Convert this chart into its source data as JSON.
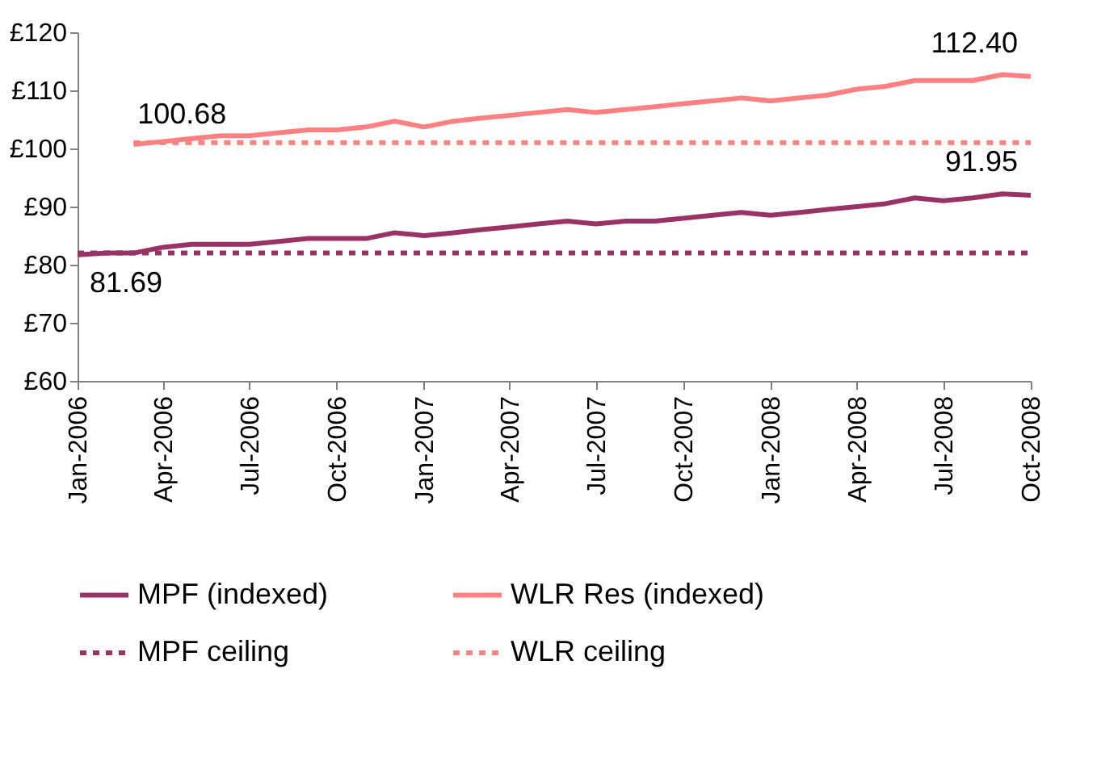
{
  "chart_data": {
    "type": "line",
    "x": [
      "2006-01",
      "2006-02",
      "2006-03",
      "2006-04",
      "2006-05",
      "2006-06",
      "2006-07",
      "2006-08",
      "2006-09",
      "2006-10",
      "2006-11",
      "2006-12",
      "2007-01",
      "2007-02",
      "2007-03",
      "2007-04",
      "2007-05",
      "2007-06",
      "2007-07",
      "2007-08",
      "2007-09",
      "2007-10",
      "2007-11",
      "2007-12",
      "2008-01",
      "2008-02",
      "2008-03",
      "2008-04",
      "2008-05",
      "2008-06",
      "2008-07",
      "2008-08",
      "2008-09",
      "2008-10"
    ],
    "series": [
      {
        "name": "MPF (indexed)",
        "color": "#993366",
        "line_style": "solid",
        "values": [
          81.69,
          82,
          82,
          83,
          83.5,
          83.5,
          83.5,
          84,
          84.5,
          84.5,
          84.5,
          85.5,
          85,
          85.5,
          86,
          86.5,
          87,
          87.5,
          87,
          87.5,
          87.5,
          88,
          88.5,
          89,
          88.5,
          89,
          89.5,
          90,
          90.5,
          91.5,
          91,
          91.5,
          92.2,
          91.95
        ]
      },
      {
        "name": "WLR Res (indexed)",
        "color": "#ff8080",
        "line_style": "solid",
        "x": [
          "2006-03",
          "2006-04",
          "2006-05",
          "2006-06",
          "2006-07",
          "2006-08",
          "2006-09",
          "2006-10",
          "2006-11",
          "2006-12",
          "2007-01",
          "2007-02",
          "2007-03",
          "2007-04",
          "2007-05",
          "2007-06",
          "2007-07",
          "2007-08",
          "2007-09",
          "2007-10",
          "2007-11",
          "2007-12",
          "2008-01",
          "2008-02",
          "2008-03",
          "2008-04",
          "2008-05",
          "2008-06",
          "2008-07",
          "2008-08",
          "2008-09",
          "2008-10"
        ],
        "values": [
          100.68,
          101.2,
          101.7,
          102.2,
          102.2,
          102.7,
          103.2,
          103.2,
          103.7,
          104.7,
          103.7,
          104.7,
          105.2,
          105.7,
          106.2,
          106.7,
          106.2,
          106.7,
          107.2,
          107.7,
          108.2,
          108.7,
          108.2,
          108.7,
          109.2,
          110.2,
          110.7,
          111.7,
          111.7,
          111.7,
          112.7,
          112.4
        ]
      },
      {
        "name": "MPF ceiling",
        "color": "#993366",
        "line_style": "dashed",
        "x": [
          "2006-01",
          "2008-10"
        ],
        "values": [
          82,
          82
        ]
      },
      {
        "name": "WLR ceiling",
        "color": "#ff8080",
        "line_style": "dashed",
        "x": [
          "2006-03",
          "2008-10"
        ],
        "values": [
          101,
          101
        ]
      }
    ],
    "annotations": [
      {
        "text": "81.69",
        "x": "2006-01",
        "y": 81.69
      },
      {
        "text": "100.68",
        "x": "2006-03",
        "y": 100.68
      },
      {
        "text": "91.95",
        "x": "2008-10",
        "y": 91.95
      },
      {
        "text": "112.40",
        "x": "2008-10",
        "y": 112.4
      }
    ],
    "xlim": [
      "2006-01",
      "2008-10"
    ],
    "xticks": [
      {
        "value": "2006-01",
        "label": "Jan-2006"
      },
      {
        "value": "2006-04",
        "label": "Apr-2006"
      },
      {
        "value": "2006-07",
        "label": "Jul-2006"
      },
      {
        "value": "2006-10",
        "label": "Oct-2006"
      },
      {
        "value": "2007-01",
        "label": "Jan-2007"
      },
      {
        "value": "2007-04",
        "label": "Apr-2007"
      },
      {
        "value": "2007-07",
        "label": "Jul-2007"
      },
      {
        "value": "2007-10",
        "label": "Oct-2007"
      },
      {
        "value": "2008-01",
        "label": "Jan-2008"
      },
      {
        "value": "2008-04",
        "label": "Apr-2008"
      },
      {
        "value": "2008-07",
        "label": "Jul-2008"
      },
      {
        "value": "2008-10",
        "label": "Oct-2008"
      }
    ],
    "ylim": [
      60,
      120
    ],
    "yticks": [
      {
        "value": 60,
        "label": "£60"
      },
      {
        "value": 70,
        "label": "£70"
      },
      {
        "value": 80,
        "label": "£80"
      },
      {
        "value": 90,
        "label": "£90"
      },
      {
        "value": 100,
        "label": "£100"
      },
      {
        "value": 110,
        "label": "£110"
      },
      {
        "value": 120,
        "label": "£120"
      }
    ],
    "grid": false,
    "legend": "bottom"
  }
}
